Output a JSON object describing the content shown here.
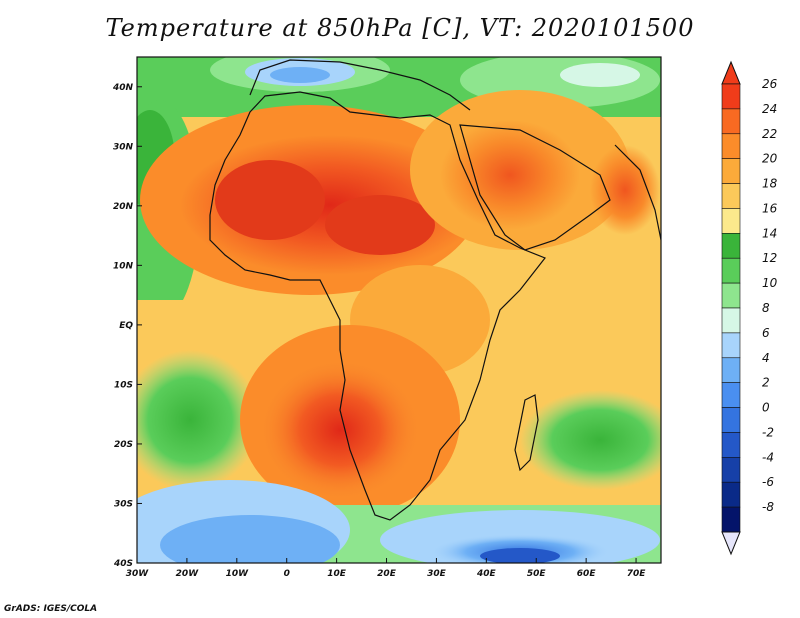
{
  "title": "Temperature at 850hPa [C], VT: 2020101500",
  "credit": "GrADS: IGES/COLA",
  "map": {
    "lon_ticks": [
      "30W",
      "20W",
      "10W",
      "0",
      "10E",
      "20E",
      "30E",
      "40E",
      "50E",
      "60E",
      "70E"
    ],
    "lat_ticks": [
      "40N",
      "30N",
      "20N",
      "10N",
      "EQ",
      "10S",
      "20S",
      "30S",
      "40S"
    ],
    "lon_range": [
      -30,
      75
    ],
    "lat_range": [
      -40,
      45
    ]
  },
  "colorbar": {
    "labels": [
      "26",
      "24",
      "22",
      "20",
      "18",
      "16",
      "14",
      "12",
      "10",
      "8",
      "6",
      "4",
      "2",
      "0",
      "-2",
      "-4",
      "-6",
      "-8"
    ],
    "colors": [
      "#f03c1a",
      "#f86a22",
      "#fb8c2a",
      "#fbaa3a",
      "#fbc95a",
      "#fbe98c",
      "#3ab43a",
      "#5acd5a",
      "#8ee58e",
      "#d6f7e6",
      "#a8d4fb",
      "#6eb0f5",
      "#4a8ff0",
      "#3474e0",
      "#2458c8",
      "#1640a8",
      "#0a2a88",
      "#04146a"
    ]
  }
}
